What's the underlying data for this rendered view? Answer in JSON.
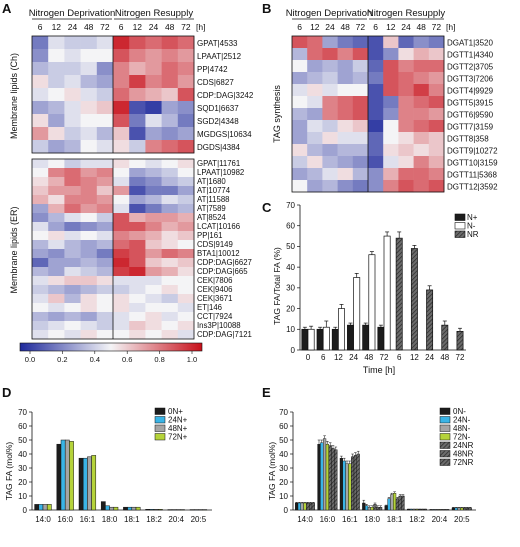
{
  "palette": {
    "low": "#1f2a9c",
    "mid": "#f4f4f6",
    "high": "#c8101a",
    "black": "#1c1c1c",
    "white": "#ffffff",
    "cyan": "#3ab4e6",
    "gray": "#a5a5a5",
    "lime": "#b5d33a"
  },
  "panelA": {
    "letter": "A",
    "header_nd": "Nitrogen Deprivation",
    "header_nr": "Nitrogen Resupply",
    "time_labels": [
      "6",
      "12",
      "24",
      "48",
      "72",
      "6",
      "12",
      "24",
      "48",
      "72"
    ],
    "time_unit": "[h]",
    "ylabel_top": "Membrane lipids (Ch)",
    "ylabel_bottom": "Membrane lipids (ER)",
    "rows_top": [
      {
        "label": "GPAT|4533",
        "values": [
          0.2,
          0.45,
          0.4,
          0.4,
          0.45,
          0.95,
          0.85,
          0.8,
          0.85,
          0.8
        ]
      },
      {
        "label": "LPAAT|2512",
        "values": [
          0.25,
          0.5,
          0.45,
          0.5,
          0.5,
          0.85,
          0.75,
          0.7,
          0.75,
          0.7
        ]
      },
      {
        "label": "PP|4742",
        "values": [
          0.35,
          0.4,
          0.4,
          0.45,
          0.25,
          0.75,
          0.65,
          0.7,
          0.8,
          0.75
        ]
      },
      {
        "label": "CDS|6827",
        "values": [
          0.55,
          0.4,
          0.45,
          0.35,
          0.3,
          0.75,
          0.9,
          0.75,
          0.8,
          0.7
        ]
      },
      {
        "label": "CDP:DAG|3242",
        "values": [
          0.45,
          0.5,
          0.55,
          0.45,
          0.4,
          0.8,
          0.7,
          0.65,
          0.6,
          0.85
        ]
      },
      {
        "label": "SQD1|6637",
        "values": [
          0.3,
          0.35,
          0.45,
          0.55,
          0.6,
          0.95,
          0.1,
          0.05,
          0.3,
          0.25
        ]
      },
      {
        "label": "SGD2|4348",
        "values": [
          0.55,
          0.3,
          0.45,
          0.5,
          0.5,
          0.85,
          0.2,
          0.45,
          0.35,
          0.2
        ]
      },
      {
        "label": "MGDGS|10634",
        "values": [
          0.7,
          0.55,
          0.4,
          0.45,
          0.35,
          0.6,
          0.1,
          0.3,
          0.25,
          0.3
        ]
      },
      {
        "label": "DGDS|4384",
        "values": [
          0.4,
          0.3,
          0.35,
          0.5,
          0.45,
          0.55,
          0.4,
          0.75,
          0.8,
          0.85
        ]
      }
    ],
    "rows_bottom": [
      {
        "label": "GPAT|11761",
        "values": [
          0.45,
          0.5,
          0.4,
          0.45,
          0.45,
          0.55,
          0.5,
          0.45,
          0.5,
          0.55
        ]
      },
      {
        "label": "LPAAT|10982",
        "values": [
          0.5,
          0.75,
          0.8,
          0.7,
          0.75,
          0.5,
          0.3,
          0.35,
          0.4,
          0.5
        ]
      },
      {
        "label": "AT|1680",
        "values": [
          0.55,
          0.65,
          0.8,
          0.75,
          0.7,
          0.45,
          0.2,
          0.25,
          0.35,
          0.4
        ]
      },
      {
        "label": "AT|10774",
        "values": [
          0.6,
          0.7,
          0.7,
          0.75,
          0.6,
          0.7,
          0.1,
          0.2,
          0.2,
          0.3
        ]
      },
      {
        "label": "AT|11588",
        "values": [
          0.65,
          0.55,
          0.75,
          0.75,
          0.7,
          0.5,
          0.3,
          0.35,
          0.45,
          0.4
        ]
      },
      {
        "label": "AT|7589",
        "values": [
          0.3,
          0.65,
          0.8,
          0.7,
          0.75,
          0.45,
          0.1,
          0.2,
          0.3,
          0.35
        ]
      },
      {
        "label": "AT|8524",
        "values": [
          0.25,
          0.35,
          0.45,
          0.5,
          0.4,
          0.85,
          0.65,
          0.7,
          0.7,
          0.65
        ]
      },
      {
        "label": "LCAT|10166",
        "values": [
          0.45,
          0.3,
          0.2,
          0.25,
          0.3,
          0.85,
          0.85,
          0.75,
          0.65,
          0.7
        ]
      },
      {
        "label": "PP|161",
        "values": [
          0.5,
          0.55,
          0.45,
          0.5,
          0.45,
          0.75,
          0.7,
          0.65,
          0.55,
          0.6
        ]
      },
      {
        "label": "CDS|9149",
        "values": [
          0.35,
          0.45,
          0.35,
          0.3,
          0.35,
          0.8,
          0.85,
          0.6,
          0.55,
          0.5
        ]
      },
      {
        "label": "BTA1|10012",
        "values": [
          0.3,
          0.25,
          0.35,
          0.3,
          0.2,
          0.9,
          0.85,
          0.7,
          0.8,
          0.75
        ]
      },
      {
        "label": "CDP:DAG|6627",
        "values": [
          0.15,
          0.3,
          0.3,
          0.35,
          0.3,
          0.95,
          0.85,
          0.6,
          0.55,
          0.6
        ]
      },
      {
        "label": "CDP:DAG|665",
        "values": [
          0.35,
          0.3,
          0.45,
          0.4,
          0.35,
          0.9,
          0.95,
          0.7,
          0.65,
          0.55
        ]
      },
      {
        "label": "CEK|7806",
        "values": [
          0.45,
          0.55,
          0.6,
          0.6,
          0.55,
          0.45,
          0.45,
          0.45,
          0.5,
          0.5
        ]
      },
      {
        "label": "CEK|9406",
        "values": [
          0.4,
          0.35,
          0.3,
          0.35,
          0.4,
          0.4,
          0.45,
          0.5,
          0.55,
          0.5
        ]
      },
      {
        "label": "CEK|3671",
        "values": [
          0.45,
          0.6,
          0.35,
          0.55,
          0.5,
          0.55,
          0.5,
          0.45,
          0.4,
          0.55
        ]
      },
      {
        "label": "ET|146",
        "values": [
          0.5,
          0.45,
          0.5,
          0.55,
          0.5,
          0.55,
          0.45,
          0.5,
          0.5,
          0.45
        ]
      },
      {
        "label": "CCT|7924",
        "values": [
          0.35,
          0.3,
          0.35,
          0.3,
          0.4,
          0.45,
          0.5,
          0.55,
          0.45,
          0.5
        ]
      },
      {
        "label": "Ins3P|10088",
        "values": [
          0.4,
          0.45,
          0.5,
          0.45,
          0.4,
          0.45,
          0.6,
          0.55,
          0.5,
          0.55
        ]
      },
      {
        "label": "CDP:DAG|7121",
        "values": [
          0.45,
          0.5,
          0.45,
          0.55,
          0.5,
          0.5,
          0.55,
          0.5,
          0.55,
          0.45
        ]
      }
    ]
  },
  "colorbar": {
    "ticks": [
      "0.0",
      "0.2",
      "0.4",
      "0.6",
      "0.8",
      "1.0"
    ]
  },
  "panelB": {
    "letter": "B",
    "header_nd": "Nitrogen Deprivation",
    "header_nr": "Nitrogen Resupply",
    "time_labels": [
      "6",
      "12",
      "24",
      "48",
      "72",
      "6",
      "12",
      "24",
      "48",
      "72"
    ],
    "time_unit": "[h]",
    "ylabel": "TAG synthesis",
    "rows": [
      {
        "label": "DGAT1|3520",
        "values": [
          0.85,
          0.8,
          0.3,
          0.2,
          0.15,
          0.1,
          0.6,
          0.15,
          0.25,
          0.2
        ]
      },
      {
        "label": "DGTT1|4340",
        "values": [
          0.35,
          0.8,
          0.85,
          0.75,
          0.85,
          0.1,
          0.25,
          0.55,
          0.65,
          0.6
        ]
      },
      {
        "label": "DGTT2|3705",
        "values": [
          0.5,
          0.3,
          0.35,
          0.3,
          0.4,
          0.15,
          0.85,
          0.75,
          0.8,
          0.8
        ]
      },
      {
        "label": "DGTT3|7206",
        "values": [
          0.3,
          0.35,
          0.4,
          0.3,
          0.35,
          0.2,
          0.85,
          0.8,
          0.75,
          0.7
        ]
      },
      {
        "label": "DGTT4|9929",
        "values": [
          0.45,
          0.55,
          0.45,
          0.5,
          0.5,
          0.1,
          0.85,
          0.8,
          0.9,
          0.75
        ]
      },
      {
        "label": "DGTT5|3915",
        "values": [
          0.5,
          0.45,
          0.75,
          0.8,
          0.85,
          0.1,
          0.2,
          0.75,
          0.8,
          0.85
        ]
      },
      {
        "label": "DGTT6|9590",
        "values": [
          0.35,
          0.3,
          0.75,
          0.8,
          0.85,
          0.1,
          0.25,
          0.75,
          0.75,
          0.7
        ]
      },
      {
        "label": "DGTT7|3159",
        "values": [
          0.3,
          0.45,
          0.4,
          0.55,
          0.6,
          0.05,
          0.5,
          0.75,
          0.8,
          0.85
        ]
      },
      {
        "label": "DGTT8|358",
        "values": [
          0.3,
          0.4,
          0.55,
          0.45,
          0.45,
          0.15,
          0.5,
          0.55,
          0.65,
          0.6
        ]
      },
      {
        "label": "DGTT9|10272",
        "values": [
          0.55,
          0.35,
          0.3,
          0.35,
          0.35,
          0.15,
          0.55,
          0.6,
          0.55,
          0.6
        ]
      },
      {
        "label": "DGTT10|3159",
        "values": [
          0.4,
          0.55,
          0.35,
          0.3,
          0.25,
          0.1,
          0.45,
          0.55,
          0.75,
          0.65
        ]
      },
      {
        "label": "DGTT11|5368",
        "values": [
          0.3,
          0.35,
          0.45,
          0.55,
          0.35,
          0.25,
          0.65,
          0.8,
          0.8,
          0.75
        ]
      },
      {
        "label": "DGTT12|3592",
        "values": [
          0.5,
          0.3,
          0.35,
          0.25,
          0.2,
          0.25,
          0.75,
          0.85,
          0.8,
          0.85
        ]
      }
    ]
  },
  "chart_data": [
    {
      "id": "C",
      "type": "bar",
      "letter": "C",
      "ylabel": "TAG FA/Total FA (%)",
      "xlabel": "Time [h]",
      "ylim": [
        0,
        70
      ],
      "yticks": [
        0,
        10,
        20,
        30,
        40,
        50,
        60,
        70
      ],
      "categories": [
        "0",
        "6",
        "12",
        "24",
        "48",
        "72",
        "6",
        "12",
        "24",
        "48",
        "72"
      ],
      "series": [
        {
          "name": "N+",
          "values": [
            10,
            10,
            10,
            12,
            12,
            11,
            null,
            null,
            null,
            null,
            null
          ],
          "errors": [
            1,
            1,
            1,
            1,
            1,
            1,
            0,
            0,
            0,
            0,
            0
          ]
        },
        {
          "name": "N-",
          "values": [
            10,
            11,
            20,
            35,
            46,
            55,
            null,
            null,
            null,
            null,
            null
          ],
          "errors": [
            1.5,
            3,
            2,
            2,
            1.5,
            2,
            0,
            0,
            0,
            0,
            0
          ]
        },
        {
          "name": "NR",
          "values": [
            null,
            null,
            null,
            null,
            null,
            null,
            54,
            49,
            29,
            12,
            9
          ],
          "errors": [
            0,
            0,
            0,
            0,
            0,
            0,
            3,
            1.5,
            2,
            2,
            1.5
          ]
        }
      ],
      "legend": [
        "N+",
        "N-",
        "NR"
      ],
      "legend_position": "top-right"
    },
    {
      "id": "D",
      "type": "bar",
      "letter": "D",
      "ylabel": "TAG FA (mol%)",
      "ylim": [
        0,
        70
      ],
      "yticks": [
        0,
        10,
        20,
        30,
        40,
        50,
        60,
        70
      ],
      "categories": [
        "14:0",
        "16:0",
        "16:1",
        "18:0",
        "18:1",
        "18:2",
        "20:4",
        "20:5"
      ],
      "series": [
        {
          "name": "0N+",
          "values": [
            4,
            47,
            37,
            6,
            2,
            0.5,
            0.3,
            0.3
          ]
        },
        {
          "name": "24N+",
          "values": [
            4,
            50,
            37,
            3,
            2,
            0.5,
            0.3,
            0.3
          ]
        },
        {
          "name": "48N+",
          "values": [
            4,
            50,
            38,
            2,
            2,
            0.5,
            0.3,
            0.3
          ]
        },
        {
          "name": "72N+",
          "values": [
            4,
            49,
            39,
            2,
            2,
            0.5,
            0.3,
            0.3
          ]
        }
      ],
      "legend": [
        "0N+",
        "24N+",
        "48N+",
        "72N+"
      ],
      "legend_position": "top-right"
    },
    {
      "id": "E",
      "type": "bar",
      "letter": "E",
      "ylabel": "TAG FA (mol%)",
      "ylim": [
        0,
        70
      ],
      "yticks": [
        0,
        10,
        20,
        30,
        40,
        50,
        60,
        70
      ],
      "categories": [
        "14:0",
        "16:0",
        "16:1",
        "18:0",
        "18:1",
        "18:2",
        "20:4",
        "20:5"
      ],
      "series": [
        {
          "name": "0N-",
          "values": [
            5,
            47,
            37,
            5,
            3,
            0.5,
            0.3,
            1.5
          ],
          "errors": [
            0.5,
            3,
            1.5,
            2,
            0.5,
            0.2,
            0.1,
            0.4
          ]
        },
        {
          "name": "24N-",
          "values": [
            5,
            48,
            35,
            3,
            8,
            0.5,
            0.3,
            1.5
          ],
          "errors": [
            0.5,
            2,
            2,
            1,
            1,
            0.2,
            0.1,
            0.4
          ]
        },
        {
          "name": "48N-",
          "values": [
            5,
            51,
            33,
            2,
            11,
            0.5,
            0.3,
            1.5
          ],
          "errors": [
            0.5,
            2,
            2,
            1,
            1,
            0.2,
            0.1,
            0.4
          ]
        },
        {
          "name": "72N-",
          "values": [
            5,
            47,
            33,
            2,
            12,
            0.5,
            0.3,
            1.5
          ],
          "errors": [
            0.5,
            2,
            2,
            1,
            1,
            0.2,
            0.1,
            0.4
          ]
        },
        {
          "name": "24NR",
          "values": [
            5,
            46,
            38,
            4,
            8,
            0.5,
            0.3,
            1.5
          ],
          "errors": [
            0.5,
            2,
            2,
            1,
            1,
            0.2,
            0.1,
            0.4
          ]
        },
        {
          "name": "48NR",
          "values": [
            5,
            44,
            39,
            2,
            10,
            0.5,
            0.3,
            1.5
          ],
          "errors": [
            0.5,
            2,
            2,
            1,
            1,
            0.2,
            0.1,
            0.4
          ]
        },
        {
          "name": "72NR",
          "values": [
            5,
            43,
            40,
            2,
            10,
            0.5,
            0.3,
            1.5
          ],
          "errors": [
            0.5,
            2,
            2,
            1,
            1,
            0.2,
            0.1,
            0.4
          ]
        }
      ],
      "legend": [
        "0N-",
        "24N-",
        "48N-",
        "72N-",
        "24NR",
        "48NR",
        "72NR"
      ],
      "legend_position": "top-right"
    }
  ]
}
